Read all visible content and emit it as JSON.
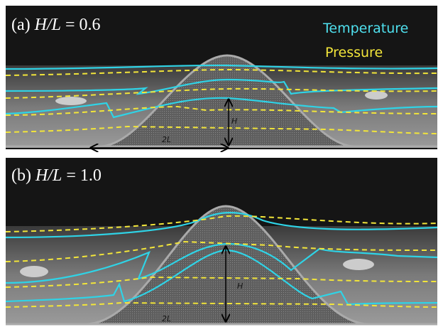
{
  "panels": [
    {
      "label_prefix": "(a) ",
      "label_ratio": "H/L",
      "label_value": " = 0.6",
      "height_label": "H",
      "width_label": "2L"
    },
    {
      "label_prefix": "(b) ",
      "label_ratio": "H/L",
      "label_value": " = 1.0",
      "height_label": "H",
      "width_label": "2L"
    }
  ],
  "legend": {
    "temperature": "Temperature",
    "pressure": "Pressure"
  }
}
